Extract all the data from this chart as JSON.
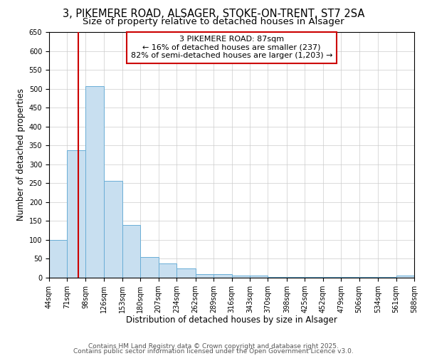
{
  "title1": "3, PIKEMERE ROAD, ALSAGER, STOKE-ON-TRENT, ST7 2SA",
  "title2": "Size of property relative to detached houses in Alsager",
  "xlabel": "Distribution of detached houses by size in Alsager",
  "ylabel": "Number of detached properties",
  "bins": [
    44,
    71,
    98,
    126,
    153,
    180,
    207,
    234,
    262,
    289,
    316,
    343,
    370,
    398,
    425,
    452,
    479,
    506,
    534,
    561,
    588
  ],
  "bin_labels": [
    "44sqm",
    "71sqm",
    "98sqm",
    "126sqm",
    "153sqm",
    "180sqm",
    "207sqm",
    "234sqm",
    "262sqm",
    "289sqm",
    "316sqm",
    "343sqm",
    "370sqm",
    "398sqm",
    "425sqm",
    "452sqm",
    "479sqm",
    "506sqm",
    "534sqm",
    "561sqm",
    "588sqm"
  ],
  "heights": [
    100,
    337,
    507,
    256,
    140,
    55,
    38,
    24,
    10,
    10,
    5,
    5,
    2,
    2,
    2,
    2,
    2,
    2,
    2,
    5
  ],
  "bar_color": "#c8dff0",
  "bar_edge_color": "#6aaed6",
  "bar_edge_width": 0.7,
  "grid_color": "#cccccc",
  "property_size": 87,
  "red_line_color": "#cc0000",
  "annotation_text": "3 PIKEMERE ROAD: 87sqm\n← 16% of detached houses are smaller (237)\n82% of semi-detached houses are larger (1,203) →",
  "annotation_box_color": "white",
  "annotation_box_edge": "#cc0000",
  "ylim": [
    0,
    650
  ],
  "yticks": [
    0,
    50,
    100,
    150,
    200,
    250,
    300,
    350,
    400,
    450,
    500,
    550,
    600,
    650
  ],
  "footer1": "Contains HM Land Registry data © Crown copyright and database right 2025.",
  "footer2": "Contains public sector information licensed under the Open Government Licence v3.0.",
  "background_color": "#ffffff",
  "title_fontsize": 10.5,
  "subtitle_fontsize": 9.5,
  "axis_label_fontsize": 8.5,
  "tick_fontsize": 7,
  "annotation_fontsize": 8,
  "footer_fontsize": 6.5
}
